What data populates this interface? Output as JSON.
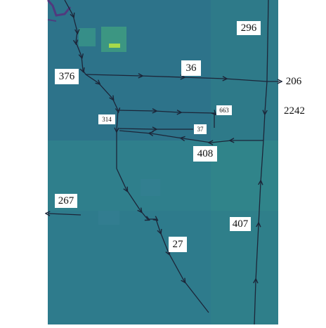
{
  "map": {
    "colors": {
      "background": "#2f7f8c",
      "terrain_dark": "#2c5f86",
      "terrain_light": "#3a9a87",
      "highlight": "#a7d94a",
      "water": "#5a2a7a",
      "route": "#1c2538",
      "label_bg": "#ffffff"
    },
    "labels": [
      {
        "id": "label-296",
        "text": "296"
      },
      {
        "id": "label-376",
        "text": "376"
      },
      {
        "id": "label-36",
        "text": "36"
      },
      {
        "id": "label-206",
        "text": "206"
      },
      {
        "id": "label-2242",
        "text": "2242"
      },
      {
        "id": "label-663",
        "text": "663"
      },
      {
        "id": "label-314",
        "text": "314"
      },
      {
        "id": "label-37",
        "text": "37"
      },
      {
        "id": "label-408",
        "text": "408"
      },
      {
        "id": "label-267",
        "text": "267"
      },
      {
        "id": "label-407",
        "text": "407"
      },
      {
        "id": "label-27",
        "text": "27"
      }
    ]
  }
}
